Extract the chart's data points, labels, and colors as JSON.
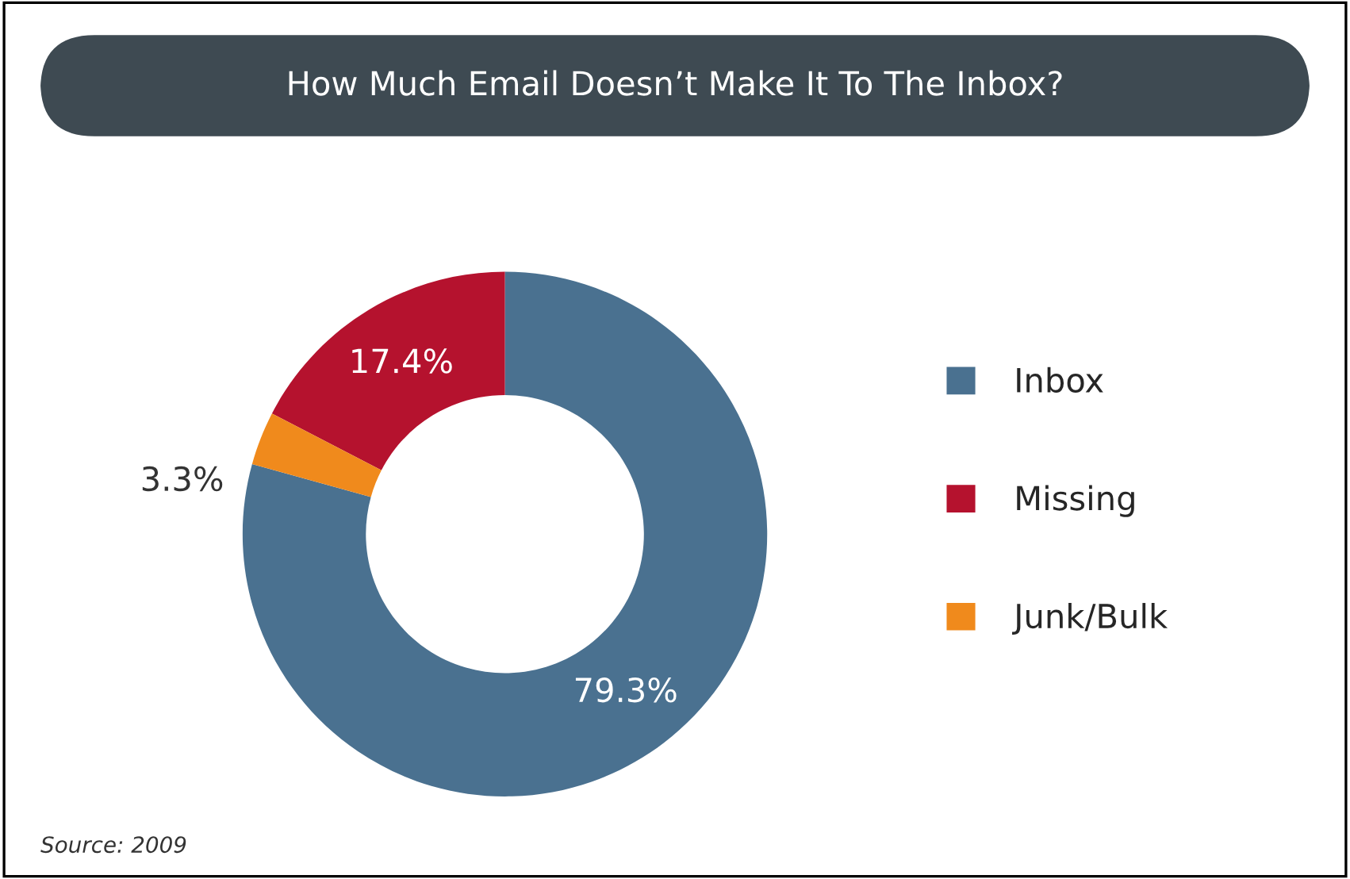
{
  "chart_data": {
    "type": "donut",
    "title": "How Much Email Doesn’t Make It To The Inbox?",
    "categories": [
      "Inbox",
      "Missing",
      "Junk/Bulk"
    ],
    "values": [
      79.3,
      17.4,
      3.3
    ],
    "colors": [
      "#4a7190",
      "#b5122e",
      "#f08a1c"
    ],
    "value_labels": [
      "79.3%",
      "17.4%",
      "3.3%"
    ],
    "legend": "right",
    "annotations": [
      "Source: 2009"
    ]
  }
}
